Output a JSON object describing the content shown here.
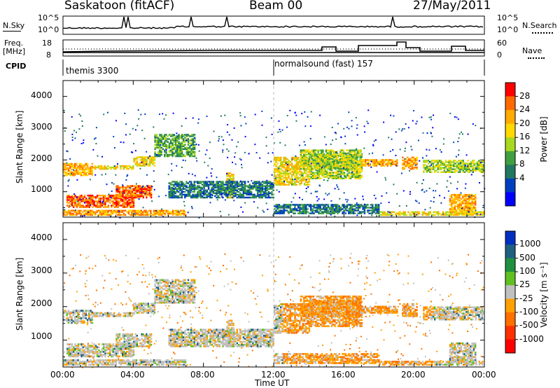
{
  "header": {
    "station": "Saskatoon (fitACF)",
    "beam": "Beam 00",
    "date": "27/May/2011"
  },
  "panels": {
    "nsky": {
      "label": "N.Sky",
      "ytop": "10^5",
      "ybot": "10^0",
      "ytop_r": "10^5",
      "ybot_r": "10^0",
      "right_label": "N.Search"
    },
    "freq": {
      "label_line1": "Freq.",
      "label_line2": "[MHz]",
      "ytop": "18",
      "ybot": "8",
      "ytop_r": "60",
      "ybot_r": "0",
      "right_label": "Nave"
    },
    "cpid": {
      "label": "CPID",
      "mode1": "themis 3300",
      "mode2": "normalsound (fast) 157"
    }
  },
  "power": {
    "ylabel": "Slant Range [km]",
    "cb_label": "Power [dB]",
    "cb_ticks": [
      "28",
      "24",
      "20",
      "16",
      "12",
      "8",
      "4"
    ],
    "colors": [
      "#ff0000",
      "#ff6a00",
      "#ffaa00",
      "#ffd800",
      "#a8d820",
      "#40a040",
      "#207860",
      "#0040c0",
      "#0000ff"
    ]
  },
  "velocity": {
    "ylabel": "Slant Range [km]",
    "cb_label": "Velocity [m s⁻¹]",
    "cb_ticks": [
      "1000",
      "500",
      "100",
      "25",
      "-25",
      "-100",
      "-500",
      "-1000"
    ],
    "colors": [
      "#0030c0",
      "#206080",
      "#209040",
      "#60c020",
      "#c0c0c0",
      "#ffa000",
      "#ff7000",
      "#ff3000",
      "#ff0000"
    ]
  },
  "chart_data": [
    {
      "type": "heatmap",
      "title": "Power",
      "xlabel": "Time UT",
      "ylabel": "Slant Range [km]",
      "x_ticks": [
        "00:00",
        "04:00",
        "08:00",
        "12:00",
        "16:00",
        "20:00",
        "00:00"
      ],
      "y_ticks": [
        "1000",
        "2000",
        "3000",
        "4000"
      ],
      "xlim": [
        0,
        24
      ],
      "ylim": [
        200,
        4500
      ]
    },
    {
      "type": "heatmap",
      "title": "Velocity",
      "xlabel": "Time UT",
      "ylabel": "Slant Range [km]",
      "x_ticks": [
        "00:00",
        "04:00",
        "08:00",
        "12:00",
        "16:00",
        "20:00",
        "00:00"
      ],
      "y_ticks": [
        "1000",
        "2000",
        "3000",
        "4000"
      ],
      "xlim": [
        0,
        24
      ],
      "ylim": [
        200,
        4500
      ]
    }
  ],
  "xaxis": {
    "label": "Time UT",
    "ticks": [
      "00:00",
      "04:00",
      "08:00",
      "12:00",
      "16:00",
      "20:00",
      "00:00"
    ]
  },
  "yticks": [
    "1000",
    "2000",
    "3000",
    "4000"
  ]
}
